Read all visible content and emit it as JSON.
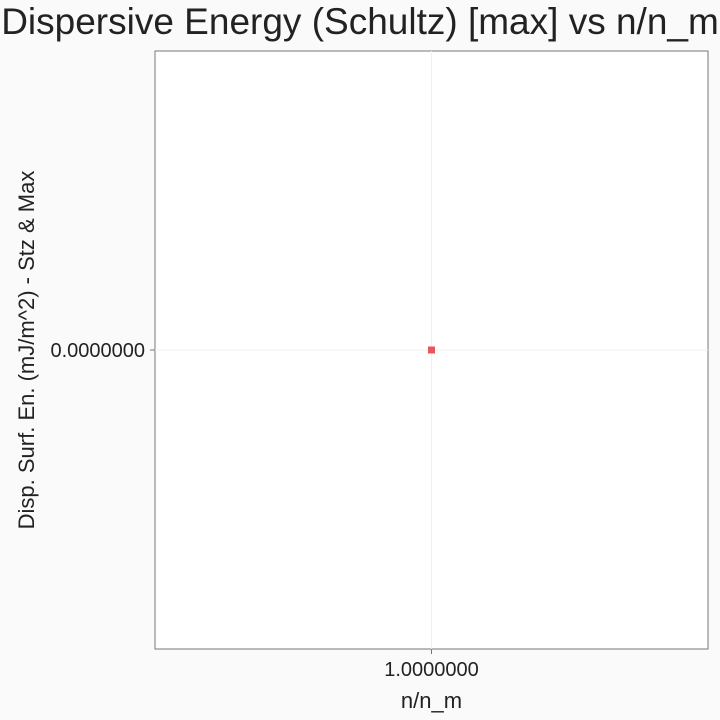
{
  "chart_data": {
    "type": "scatter",
    "title": "Dispersive Energy (Schultz) [max] vs n/n_m",
    "xlabel": "n/n_m",
    "ylabel": "Disp. Surf. En. (mJ/m^2) - Stz & Max",
    "x_ticks": [
      "1.0000000"
    ],
    "y_ticks": [
      "0.0000000"
    ],
    "xlim": [
      0.95,
      1.05
    ],
    "ylim": [
      -0.05,
      0.05
    ],
    "grid": true,
    "series": [
      {
        "marker_color": "#e8575a",
        "points": [
          {
            "x": 1.0,
            "y": 0.0
          }
        ]
      }
    ],
    "colors": {
      "background": "#fafafa",
      "panel": "#ffffff",
      "grid": "#eef0f6",
      "axis": "#777777",
      "text": "#222222"
    }
  }
}
